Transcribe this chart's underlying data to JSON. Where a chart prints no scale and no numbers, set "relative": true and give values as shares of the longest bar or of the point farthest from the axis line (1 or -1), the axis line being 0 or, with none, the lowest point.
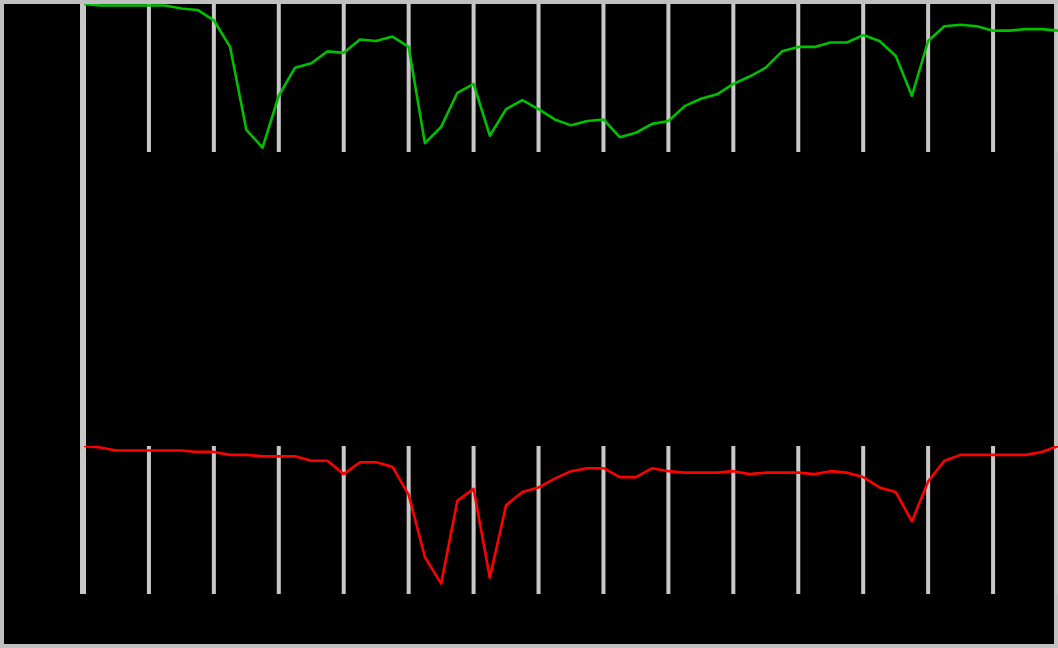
{
  "chart_data": [
    {
      "type": "line",
      "relative": true,
      "grid": "x",
      "tick_labels": false,
      "marker": "none",
      "categories": [
        null,
        null,
        null,
        null,
        null,
        null,
        null,
        null,
        null,
        null,
        null,
        null,
        null,
        null,
        null,
        null,
        null,
        null,
        null,
        null,
        null,
        null,
        null,
        null,
        null,
        null,
        null,
        null,
        null,
        null,
        null,
        null,
        null,
        null,
        null,
        null,
        null,
        null,
        null,
        null,
        null,
        null,
        null,
        null,
        null,
        null,
        null,
        null,
        null,
        null,
        null,
        null,
        null,
        null,
        null,
        null,
        null,
        null,
        null,
        null,
        null
      ],
      "series": [
        {
          "color": "#00c000",
          "values": [
            1.0,
            0.99,
            0.99,
            0.99,
            0.99,
            0.99,
            0.97,
            0.96,
            0.89,
            0.71,
            0.15,
            0.03,
            0.38,
            0.57,
            0.6,
            0.68,
            0.67,
            0.76,
            0.75,
            0.78,
            0.71,
            0.06,
            0.17,
            0.4,
            0.46,
            0.11,
            0.29,
            0.35,
            0.29,
            0.22,
            0.18,
            0.21,
            0.22,
            0.1,
            0.13,
            0.19,
            0.21,
            0.31,
            0.36,
            0.39,
            0.46,
            0.51,
            0.57,
            0.68,
            0.71,
            0.71,
            0.74,
            0.74,
            0.79,
            0.75,
            0.65,
            0.38,
            0.75,
            0.85,
            0.86,
            0.85,
            0.82,
            0.82,
            0.83,
            0.83,
            0.82
          ]
        }
      ]
    },
    {
      "type": "line",
      "relative": true,
      "grid": "x",
      "tick_labels": false,
      "marker": "none",
      "categories": [
        null,
        null,
        null,
        null,
        null,
        null,
        null,
        null,
        null,
        null,
        null,
        null,
        null,
        null,
        null,
        null,
        null,
        null,
        null,
        null,
        null,
        null,
        null,
        null,
        null,
        null,
        null,
        null,
        null,
        null,
        null,
        null,
        null,
        null,
        null,
        null,
        null,
        null,
        null,
        null,
        null,
        null,
        null,
        null,
        null,
        null,
        null,
        null,
        null,
        null,
        null,
        null,
        null,
        null,
        null,
        null,
        null,
        null,
        null,
        null,
        null
      ],
      "series": [
        {
          "color": "#ff0000",
          "values": [
            1.0,
            0.99,
            0.97,
            0.97,
            0.97,
            0.97,
            0.97,
            0.96,
            0.96,
            0.94,
            0.94,
            0.93,
            0.93,
            0.93,
            0.9,
            0.9,
            0.81,
            0.89,
            0.89,
            0.86,
            0.67,
            0.25,
            0.07,
            0.63,
            0.71,
            0.11,
            0.6,
            0.69,
            0.72,
            0.78,
            0.83,
            0.85,
            0.85,
            0.79,
            0.79,
            0.85,
            0.83,
            0.82,
            0.82,
            0.82,
            0.83,
            0.81,
            0.82,
            0.82,
            0.82,
            0.81,
            0.83,
            0.82,
            0.79,
            0.72,
            0.69,
            0.49,
            0.76,
            0.9,
            0.94,
            0.94,
            0.94,
            0.94,
            0.94,
            0.96,
            1.0
          ]
        }
      ]
    }
  ]
}
